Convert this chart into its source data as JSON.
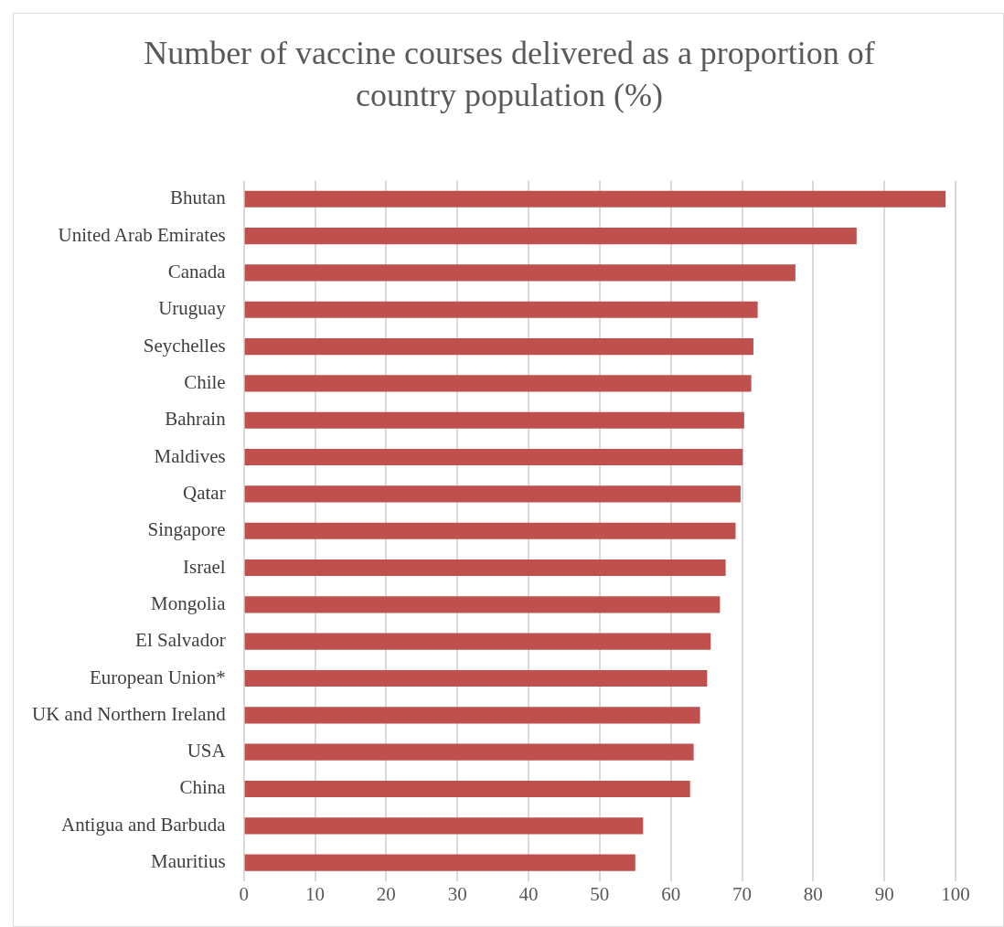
{
  "chart_data": {
    "type": "bar",
    "orientation": "horizontal",
    "title": "Number of vaccine courses delivered as a proportion of country population (%)",
    "categories": [
      "Bhutan",
      "United Arab Emirates",
      "Canada",
      "Uruguay",
      "Seychelles",
      "Chile",
      "Bahrain",
      "Maldives",
      "Qatar",
      "Singapore",
      "Israel",
      "Mongolia",
      "El Salvador",
      "European Union*",
      "UK and Northern Ireland",
      "USA",
      "China",
      "Antigua and Barbuda",
      "Mauritius"
    ],
    "values": [
      98.6,
      86.1,
      77.5,
      72.2,
      71.6,
      71.3,
      70.3,
      70.1,
      69.8,
      69.1,
      67.7,
      66.9,
      65.6,
      65.1,
      64.1,
      63.2,
      62.7,
      56.1,
      55.0
    ],
    "color": "#c0504d",
    "xlim": [
      0,
      100
    ],
    "xticks": [
      0,
      10,
      20,
      30,
      40,
      50,
      60,
      70,
      80,
      90,
      100
    ],
    "grid": "x",
    "legend": false
  }
}
